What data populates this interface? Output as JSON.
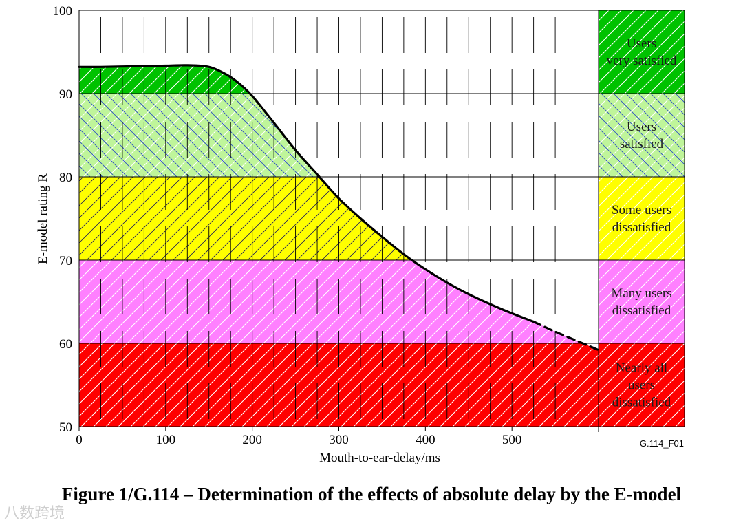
{
  "chart_data": {
    "type": "line",
    "xlabel": "Mouth-to-ear-delay/ms",
    "ylabel": "E-model rating R",
    "xlim": [
      0,
      600
    ],
    "ylim": [
      50,
      100
    ],
    "x_ticks": [
      0,
      100,
      200,
      300,
      400,
      500
    ],
    "y_ticks": [
      50,
      60,
      70,
      80,
      90,
      100
    ],
    "grid": true,
    "series": [
      {
        "points": [
          [
            0,
            93.2
          ],
          [
            25,
            93.2
          ],
          [
            50,
            93.25
          ],
          [
            75,
            93.3
          ],
          [
            100,
            93.35
          ],
          [
            125,
            93.4
          ],
          [
            150,
            93.2
          ],
          [
            170,
            92.3
          ],
          [
            185,
            91.2
          ],
          [
            200,
            89.7
          ],
          [
            225,
            86.5
          ],
          [
            250,
            83.2
          ],
          [
            275,
            80.3
          ],
          [
            300,
            77.4
          ],
          [
            325,
            75.0
          ],
          [
            350,
            72.8
          ],
          [
            375,
            70.7
          ],
          [
            400,
            68.9
          ],
          [
            425,
            67.3
          ],
          [
            450,
            65.9
          ],
          [
            475,
            64.7
          ],
          [
            500,
            63.6
          ],
          [
            525,
            62.6
          ]
        ],
        "style": "solid"
      },
      {
        "points": [
          [
            525,
            62.6
          ],
          [
            550,
            61.4
          ],
          [
            575,
            60.3
          ],
          [
            600,
            59.2
          ]
        ],
        "style": "dashed"
      }
    ],
    "bands": [
      {
        "from": 90,
        "to": 100,
        "label": "Users very satisfied",
        "label_lines": [
          "Users",
          "very satisfied"
        ],
        "color": "#00c200"
      },
      {
        "from": 80,
        "to": 90,
        "label": "Users satisfied",
        "label_lines": [
          "Users",
          "satisfied"
        ],
        "color": "#bff59a"
      },
      {
        "from": 70,
        "to": 80,
        "label": "Some users dissatisfied",
        "label_lines": [
          "Some users",
          "dissatisfied"
        ],
        "color": "#ffff00"
      },
      {
        "from": 60,
        "to": 70,
        "label": "Many users dissatisfied",
        "label_lines": [
          "Many users",
          "dissatisfied"
        ],
        "color": "#ff80ff"
      },
      {
        "from": 50,
        "to": 60,
        "label": "Nearly all users dissatisfied",
        "label_lines": [
          "Nearly all",
          "users",
          "dissatisfied"
        ],
        "color": "#ff0000"
      }
    ]
  },
  "figure_code": "G.114_F01",
  "caption": "Figure 1/G.114 – Determination of the effects of absolute delay by the E-model",
  "watermark": "八数跨境"
}
